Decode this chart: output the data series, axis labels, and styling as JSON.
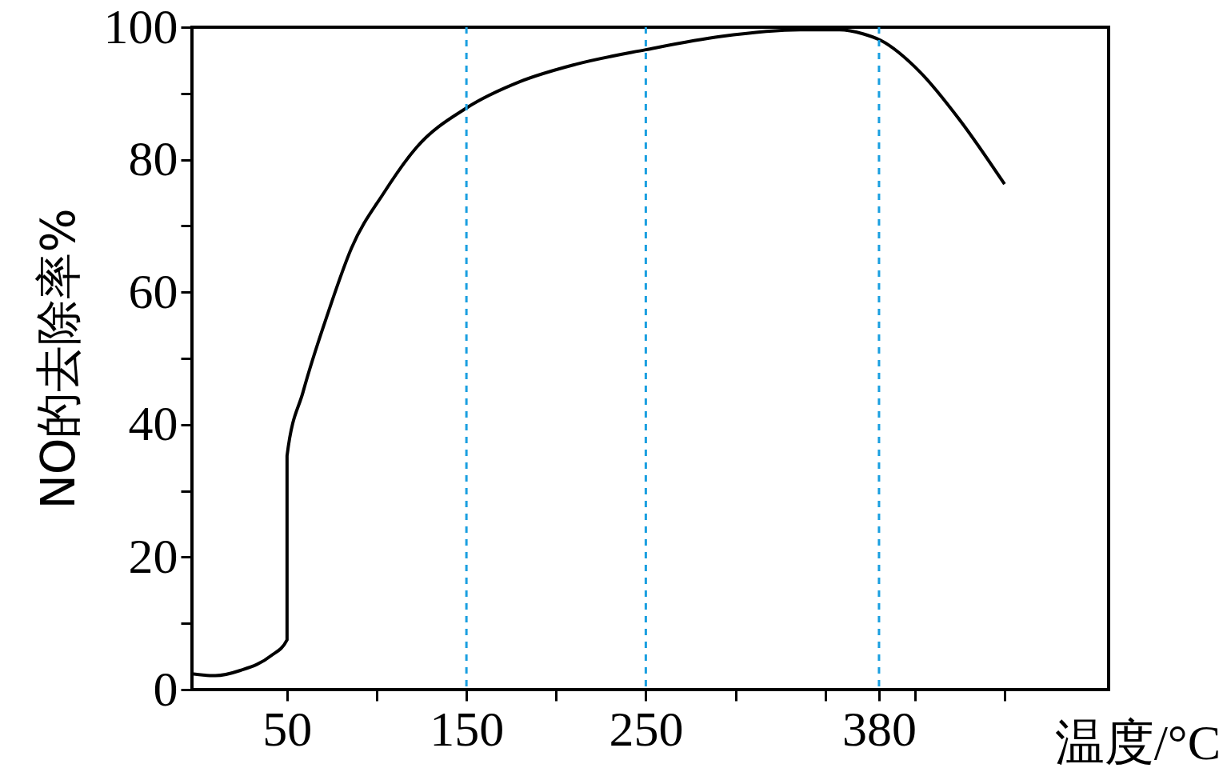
{
  "chart_data": {
    "type": "line",
    "xlabel": "温度/°C",
    "ylabel": "NO的去除率%",
    "x": [
      -3,
      10,
      24,
      41,
      50,
      50,
      59,
      73,
      86,
      104,
      122,
      150,
      180,
      211,
      250,
      292,
      336,
      358,
      371,
      381,
      403,
      425,
      450
    ],
    "series": [
      {
        "color": "#000000",
        "values": [
          2.4,
          2.1,
          2.9,
          5.1,
          7.5,
          35.3,
          45,
          57,
          66.7,
          75,
          81.8,
          87.8,
          91.8,
          94.4,
          96.6,
          98.6,
          99.6,
          99.6,
          99,
          98,
          93.2,
          86,
          76.3
        ]
      }
    ],
    "xlim": [
      -3,
      508
    ],
    "ylim": [
      0,
      100
    ],
    "xticks": [
      50,
      {
        "value": 100,
        "label": null
      },
      150,
      {
        "value": 200,
        "label": null
      },
      250,
      {
        "value": 300,
        "label": null
      },
      {
        "value": 350,
        "label": null
      },
      380,
      {
        "value": 400,
        "label": null
      },
      {
        "value": 450,
        "label": null
      }
    ],
    "yticks": [
      0,
      {
        "value": 10,
        "label": null
      },
      20,
      {
        "value": 30,
        "label": null
      },
      40,
      {
        "value": 50,
        "label": null
      },
      60,
      {
        "value": 70,
        "label": null
      },
      80,
      {
        "value": 90,
        "label": null
      },
      100
    ],
    "ref_lines": [
      {
        "axis": "x",
        "value": 150,
        "color": "#1a9fe0",
        "line_style": "dashed"
      },
      {
        "axis": "x",
        "value": 250,
        "color": "#1a9fe0",
        "line_style": "dashed"
      },
      {
        "axis": "x",
        "value": 380,
        "color": "#1a9fe0",
        "line_style": "dashed"
      }
    ],
    "grid": false,
    "marker": "none",
    "line_style": "solid"
  }
}
